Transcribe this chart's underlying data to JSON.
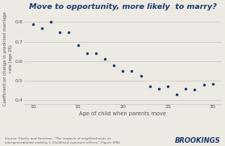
{
  "title": "Move to opportunity, more likely  to marry?",
  "xlabel": "Age of child when parents move",
  "ylabel": "Coefficient on change in predicted marriage\nrate (age 26)",
  "source_text": "Source: Chetty and Hendren, \"The impacts of neighborhoods on\nintergenerational mobility I: Childhood exposure effects,\" Figure VIIIb",
  "branding": "BROOKINGS",
  "x": [
    10,
    11,
    12,
    13,
    14,
    15,
    16,
    17,
    18,
    19,
    20,
    21,
    22,
    23,
    24,
    25,
    26,
    27,
    28,
    29,
    30
  ],
  "y": [
    0.79,
    0.77,
    0.8,
    0.75,
    0.75,
    0.68,
    0.64,
    0.64,
    0.61,
    0.58,
    0.55,
    0.55,
    0.525,
    0.47,
    0.46,
    0.47,
    0.43,
    0.46,
    0.455,
    0.48,
    0.485
  ],
  "xlim": [
    9,
    31
  ],
  "ylim": [
    0.38,
    0.85
  ],
  "yticks": [
    0.4,
    0.5,
    0.6,
    0.7,
    0.8
  ],
  "xticks": [
    10,
    15,
    20,
    25,
    30
  ],
  "dot_color": "#1a3a6b",
  "dot_size": 6,
  "background_color": "#ede9e3",
  "grid_color": "#c8c8c8",
  "title_color": "#1a3a6b",
  "axis_label_color": "#555555",
  "tick_color": "#555555",
  "source_color": "#666666",
  "branding_color": "#1a3a6b"
}
